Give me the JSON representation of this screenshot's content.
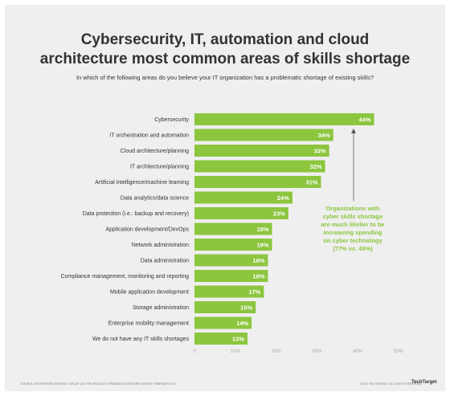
{
  "title_line1": "Cybersecurity, IT, automation and cloud",
  "title_line2": "architecture most common areas of skills shortage",
  "subtitle": "In which of the following areas do you believe your IT organization has a problematic shortage of existing skills?",
  "annotation_lines": [
    "Organizations with",
    "cyber skills shortage",
    "are much likelier to be",
    "increasing spending",
    "on cyber technology",
    "(77% vs. 45%)"
  ],
  "source": "SOURCE: ENTERPRISE STRATEGY GROUP, 2017 TECHNOLOGY SPENDING INTENTIONS SURVEY, FEBRUARY 2017",
  "copyright": "©2017 TECHTARGET. ALL RIGHTS RESERVED.",
  "logo": "TechTarget",
  "colors": {
    "bar": "#8cc63f",
    "background": "#efefef",
    "annotation": "#8cc63f"
  },
  "chart_data": {
    "type": "bar",
    "orientation": "horizontal",
    "categories": [
      "Cybersecurity",
      "IT orchestration and automation",
      "Cloud architecture/planning",
      "IT architecture/planning",
      "Artificial intelligence/machine learning",
      "Data analytics/data science",
      "Data protection (i.e.: backup and recovery)",
      "Application development/DevOps",
      "Network administration",
      "Data administration",
      "Compliance management, monitoring and reporting",
      "Mobile application development",
      "Storage administration",
      "Enterprise mobility management",
      "We do not have any IT skills shortages"
    ],
    "values": [
      44,
      34,
      33,
      32,
      31,
      24,
      23,
      19,
      19,
      18,
      18,
      17,
      15,
      14,
      13
    ],
    "value_labels": [
      "44%",
      "34%",
      "33%",
      "32%",
      "31%",
      "24%",
      "23%",
      "19%",
      "19%",
      "18%",
      "18%",
      "17%",
      "15%",
      "14%",
      "13%"
    ],
    "xticks": [
      "0",
      "10%",
      "20%",
      "30%",
      "40%",
      "50%"
    ],
    "xlim": [
      0,
      50
    ],
    "grid": false
  }
}
